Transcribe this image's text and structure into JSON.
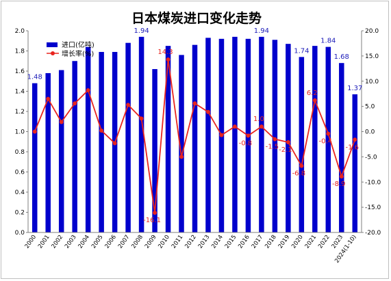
{
  "chart_data": {
    "type": "bar+line",
    "title": "日本煤炭进口变化走势",
    "categories": [
      "2000",
      "2001",
      "2002",
      "2003",
      "2004",
      "2005",
      "2006",
      "2007",
      "2008",
      "2009",
      "2010",
      "2011",
      "2012",
      "2013",
      "2014",
      "2015",
      "2016",
      "2017",
      "2018",
      "2019",
      "2020",
      "2021",
      "2022",
      "2023",
      "2024(1-10)"
    ],
    "series": [
      {
        "name": "进口(亿吨)",
        "type": "bar",
        "axis": "left",
        "color": "#0000cc",
        "values": [
          1.48,
          1.58,
          1.61,
          1.7,
          1.84,
          1.79,
          1.79,
          1.88,
          1.94,
          1.62,
          1.85,
          1.76,
          1.86,
          1.93,
          1.92,
          1.94,
          1.92,
          1.94,
          1.91,
          1.87,
          1.74,
          1.85,
          1.84,
          1.68,
          1.37
        ]
      },
      {
        "name": "增长率(%)",
        "type": "line",
        "axis": "right",
        "color": "#e8241e",
        "values": [
          0.0,
          6.5,
          1.9,
          5.6,
          8.2,
          0.2,
          -2.3,
          5.3,
          2.6,
          -16.1,
          14.3,
          -5.0,
          5.6,
          3.9,
          -0.7,
          1.0,
          -0.8,
          1.0,
          -1.5,
          -2.1,
          -6.8,
          6.2,
          -0.4,
          -8.9,
          -1.6
        ]
      }
    ],
    "bar_labels": [
      {
        "index": 0,
        "text": "1.48"
      },
      {
        "index": 8,
        "text": "1.94"
      },
      {
        "index": 17,
        "text": "1.94"
      },
      {
        "index": 20,
        "text": "1.74"
      },
      {
        "index": 22,
        "text": "1.84"
      },
      {
        "index": 23,
        "text": "1.68"
      },
      {
        "index": 24,
        "text": "1.37"
      }
    ],
    "rate_labels": [
      {
        "index": 9,
        "text": "-16.1"
      },
      {
        "index": 10,
        "text": "14.3"
      },
      {
        "index": 16,
        "text": "-0.8"
      },
      {
        "index": 17,
        "text": "1.0"
      },
      {
        "index": 18,
        "text": "-1.5"
      },
      {
        "index": 19,
        "text": "-2.1"
      },
      {
        "index": 20,
        "text": "-6.8"
      },
      {
        "index": 21,
        "text": "6.2"
      },
      {
        "index": 22,
        "text": "-0.4"
      },
      {
        "index": 23,
        "text": "-8.9"
      },
      {
        "index": 24,
        "text": "-1.6"
      }
    ],
    "y_left": {
      "min": 0.0,
      "max": 2.0,
      "step": 0.2,
      "ticks": [
        "0.0",
        "0.2",
        "0.4",
        "0.6",
        "0.8",
        "1.0",
        "1.2",
        "1.4",
        "1.6",
        "1.8",
        "2.0"
      ]
    },
    "y_right": {
      "min": -20.0,
      "max": 20.0,
      "step": 5.0,
      "ticks": [
        "-20.0",
        "-15.0",
        "-10.0",
        "-5.0",
        "0.0",
        "5.0",
        "10.0",
        "15.0",
        "20.0"
      ]
    },
    "grid": false,
    "legend_position": "top-left"
  }
}
